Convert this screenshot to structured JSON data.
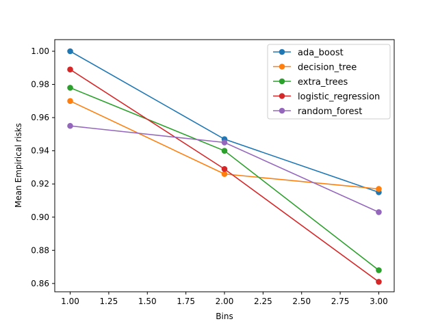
{
  "chart_data": {
    "type": "line",
    "xlabel": "Bins",
    "ylabel": "Mean Empirical risks",
    "xlim": [
      0.9,
      3.1
    ],
    "ylim": [
      0.855,
      1.007
    ],
    "x_ticks": [
      "1.00",
      "1.25",
      "1.50",
      "1.75",
      "2.00",
      "2.25",
      "2.50",
      "2.75",
      "3.00"
    ],
    "y_ticks": [
      "0.86",
      "0.88",
      "0.90",
      "0.92",
      "0.94",
      "0.96",
      "0.98",
      "1.00"
    ],
    "grid": false,
    "legend_position": "top-right",
    "x": [
      1.0,
      2.0,
      3.0
    ],
    "series": [
      {
        "name": "ada_boost",
        "color": "#1f77b4",
        "values": [
          1.0,
          0.947,
          0.915
        ]
      },
      {
        "name": "decision_tree",
        "color": "#ff7f0e",
        "values": [
          0.97,
          0.926,
          0.917
        ]
      },
      {
        "name": "extra_trees",
        "color": "#2ca02c",
        "values": [
          0.978,
          0.94,
          0.868
        ]
      },
      {
        "name": "logistic_regression",
        "color": "#d62728",
        "values": [
          0.989,
          0.929,
          0.861
        ]
      },
      {
        "name": "random_forest",
        "color": "#9467bd",
        "values": [
          0.955,
          0.945,
          0.903
        ]
      }
    ]
  }
}
